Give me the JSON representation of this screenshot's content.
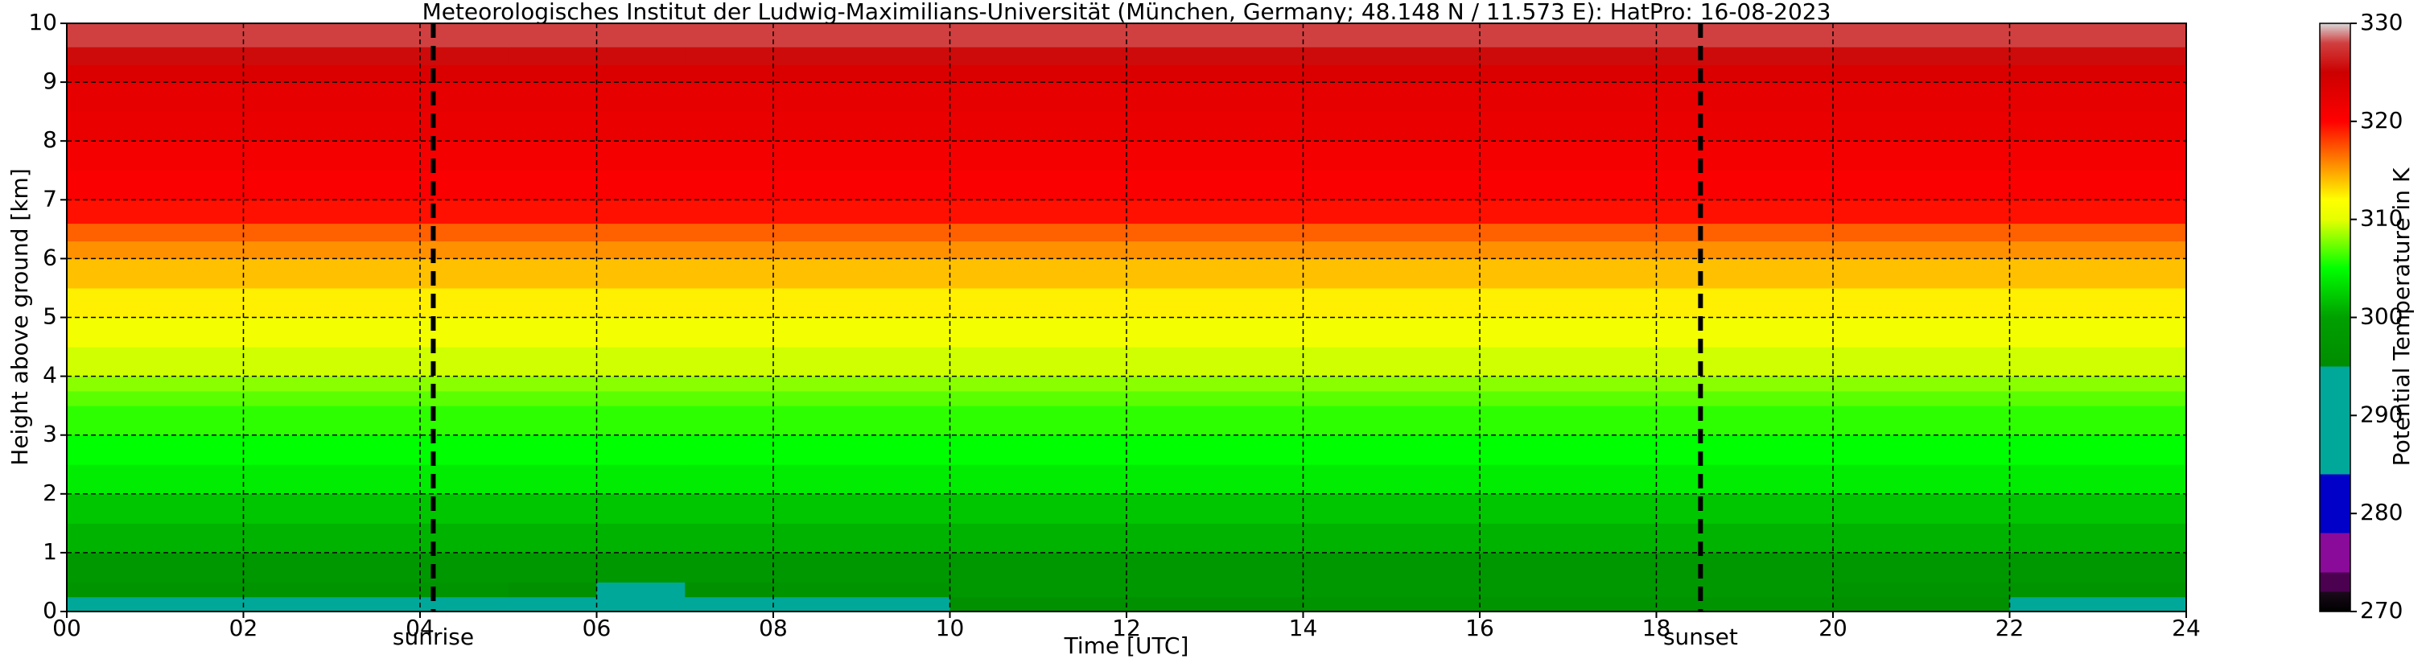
{
  "chart_data": {
    "type": "heatmap",
    "title": "Meteorologisches Institut der Ludwig-Maximilians-Universität (München, Germany; 48.148 N / 11.573 E):    HatPro: 16-08-2023",
    "xlabel": "Time [UTC]",
    "ylabel": "Height above ground [km]",
    "colorbar_label": "Potential Temperature in K",
    "xlim": [
      0,
      24
    ],
    "ylim": [
      0,
      10
    ],
    "clim": [
      270,
      330
    ],
    "xticks": [
      {
        "value": 0,
        "label": "00"
      },
      {
        "value": 2,
        "label": "02"
      },
      {
        "value": 4,
        "label": "04"
      },
      {
        "value": 6,
        "label": "06"
      },
      {
        "value": 8,
        "label": "08"
      },
      10,
      12,
      14,
      16,
      18,
      20,
      22,
      24
    ],
    "yticks": [
      0,
      1,
      2,
      3,
      4,
      5,
      6,
      7,
      8,
      9,
      10
    ],
    "cticks": [
      270,
      280,
      290,
      300,
      310,
      320,
      330
    ],
    "grid": true,
    "markers": [
      {
        "x": 4.15,
        "label": "sunrise"
      },
      {
        "x": 18.5,
        "label": "sunset"
      }
    ],
    "colormap": [
      [
        270,
        "#000000"
      ],
      [
        272,
        "#1a0a1a"
      ],
      [
        272,
        "#4b0050"
      ],
      [
        274,
        "#4b0050"
      ],
      [
        274,
        "#8a0a9a"
      ],
      [
        278,
        "#8a0a9a"
      ],
      [
        278,
        "#0000c8"
      ],
      [
        284,
        "#0000c8"
      ],
      [
        284,
        "#00a89a"
      ],
      [
        295,
        "#00a89a"
      ],
      [
        295,
        "#008c00"
      ],
      [
        300,
        "#00a000"
      ],
      [
        305,
        "#00ff00"
      ],
      [
        310,
        "#e6ff00"
      ],
      [
        312,
        "#ffff00"
      ],
      [
        315,
        "#ffa000"
      ],
      [
        320,
        "#ff0000"
      ],
      [
        325,
        "#cc0000"
      ],
      [
        328,
        "#d04040"
      ],
      [
        330,
        "#d8d8d8"
      ]
    ],
    "x_edges": [
      0,
      2,
      4,
      5,
      6,
      7,
      8,
      10,
      14,
      18,
      20,
      22,
      24
    ],
    "y_edges": [
      0,
      0.25,
      0.5,
      1,
      1.5,
      2,
      2.5,
      3,
      3.5,
      3.75,
      4,
      4.5,
      5,
      5.5,
      6,
      6.3,
      6.6,
      7,
      7.5,
      8,
      8.5,
      9,
      9.3,
      9.6,
      10
    ],
    "z": [
      [
        294,
        294,
        293,
        291,
        290,
        292,
        294,
        296,
        297,
        297,
        296,
        295
      ],
      [
        297,
        297,
        297,
        296,
        295,
        296,
        297,
        298,
        298,
        298,
        297,
        297
      ],
      [
        298,
        298,
        298,
        298,
        298,
        298,
        298,
        298,
        298,
        298,
        298,
        298
      ],
      [
        301,
        301,
        301,
        301,
        301,
        301,
        301,
        301,
        301,
        301,
        301,
        301
      ],
      [
        302,
        302,
        302,
        302,
        302,
        302,
        302,
        302,
        302,
        302,
        302,
        302
      ],
      [
        304,
        304,
        304,
        304,
        304,
        304,
        304,
        304,
        304,
        304,
        304,
        304
      ],
      [
        305,
        305,
        305,
        305,
        305,
        305,
        305,
        305,
        305,
        305,
        305,
        305
      ],
      [
        306,
        306,
        306,
        306,
        306,
        306,
        306,
        306,
        306,
        306,
        306,
        306
      ],
      [
        307,
        307,
        307,
        307,
        307,
        307,
        307,
        307,
        307,
        307,
        307,
        307
      ],
      [
        308,
        308,
        308,
        308,
        308,
        308,
        308,
        308,
        308,
        308,
        308,
        308
      ],
      [
        309.5,
        309.5,
        309.5,
        309.5,
        309.5,
        309.5,
        309.5,
        309.5,
        309.5,
        309.5,
        309.5,
        309.5
      ],
      [
        311,
        311,
        311,
        311,
        311,
        311,
        311,
        311,
        311,
        311,
        311,
        311
      ],
      [
        312.5,
        312.5,
        312.5,
        312.5,
        312.5,
        312.5,
        312.5,
        312.5,
        312.5,
        312.5,
        312.5,
        312.5
      ],
      [
        314,
        314,
        314,
        314,
        314,
        314,
        314,
        314,
        314,
        314,
        314,
        314
      ],
      [
        315.5,
        315.5,
        315.5,
        315.5,
        315.5,
        315.5,
        315.5,
        315.5,
        315.5,
        315.5,
        315.5,
        315.5
      ],
      [
        317,
        317,
        317,
        317,
        317,
        317,
        317,
        317,
        317,
        317,
        317,
        317
      ],
      [
        319.5,
        319.5,
        319.5,
        319.5,
        319.5,
        319.5,
        319.5,
        319.5,
        319.5,
        319.5,
        319.5,
        319.5
      ],
      [
        320.5,
        320.5,
        320.5,
        320.5,
        320.5,
        320.5,
        320.5,
        320.5,
        320.5,
        320.5,
        320.5,
        320.5
      ],
      [
        321,
        321,
        321,
        321,
        321,
        321,
        321,
        321,
        321,
        321,
        321,
        321
      ],
      [
        322,
        322,
        322,
        322,
        322,
        322,
        322,
        322,
        322,
        322,
        322,
        322
      ],
      [
        322.5,
        322.5,
        322.5,
        322.5,
        322.5,
        322.5,
        322.5,
        322.5,
        322.5,
        322.5,
        322.5,
        322.5
      ],
      [
        323.5,
        323.5,
        323.5,
        323.5,
        323.5,
        323.5,
        323.5,
        323.5,
        323.5,
        323.5,
        323.5,
        323.5
      ],
      [
        325.5,
        325.5,
        325.5,
        325.5,
        325.5,
        325.5,
        325.5,
        325.5,
        325.5,
        325.5,
        325.5,
        325.5
      ],
      [
        328,
        328,
        328,
        328,
        328,
        328,
        328,
        328,
        328,
        328,
        328,
        328
      ]
    ]
  }
}
